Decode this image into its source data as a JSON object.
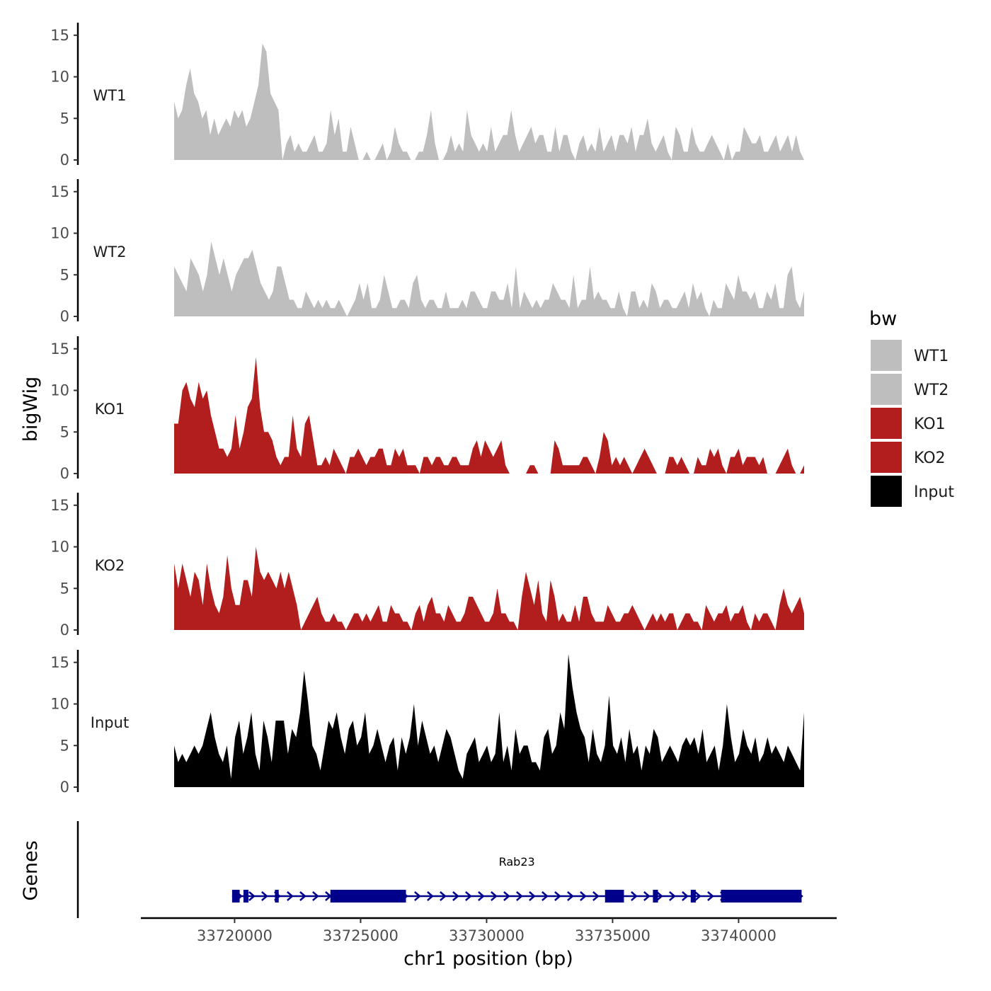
{
  "chart_data": {
    "type": "area",
    "ylabel": "bigWig",
    "xlabel": "chr1 position (bp)",
    "x_range": [
      33717600,
      33742600
    ],
    "y_range": [
      0,
      16
    ],
    "y_ticks": [
      0,
      5,
      10,
      15
    ],
    "x_ticks": [
      33720000,
      33725000,
      33730000,
      33735000,
      33740000
    ],
    "legend_title": "bw",
    "tracks": [
      {
        "name": "WT1",
        "color": "#bebebe",
        "values": [
          7,
          5,
          6,
          9,
          11,
          8,
          7,
          5,
          6,
          3,
          5,
          3,
          4,
          5,
          4,
          6,
          5,
          6,
          4,
          5,
          7,
          9,
          14,
          13,
          8,
          7,
          6,
          0,
          2,
          3,
          1,
          2,
          1,
          1,
          2,
          3,
          1,
          1,
          2,
          6,
          3,
          5,
          1,
          1,
          4,
          2,
          0,
          0,
          1,
          0,
          0,
          1,
          2,
          0,
          1,
          4,
          2,
          1,
          1,
          0,
          0,
          1,
          1,
          3,
          6,
          2,
          0,
          0,
          1,
          3,
          1,
          2,
          1,
          6,
          3,
          2,
          1,
          2,
          1,
          4,
          1,
          2,
          3,
          3,
          6,
          3,
          1,
          2,
          3,
          4,
          2,
          3,
          3,
          1,
          1,
          4,
          1,
          3,
          3,
          1,
          0,
          2,
          3,
          1,
          2,
          1,
          4,
          1,
          2,
          3,
          1,
          3,
          3,
          2,
          4,
          1,
          3,
          3,
          5,
          2,
          1,
          2,
          3,
          1,
          0,
          4,
          3,
          1,
          1,
          4,
          2,
          1,
          1,
          2,
          3,
          2,
          1,
          0,
          2,
          0,
          1,
          1,
          4,
          3,
          2,
          2,
          3,
          1,
          1,
          2,
          3,
          1,
          2,
          3,
          1,
          3,
          1,
          0
        ]
      },
      {
        "name": "WT2",
        "color": "#bebebe",
        "values": [
          6,
          5,
          4,
          3,
          7,
          6,
          5,
          3,
          5,
          9,
          7,
          5,
          7,
          5,
          3,
          5,
          6,
          7,
          7,
          8,
          6,
          4,
          3,
          2,
          3,
          6,
          6,
          4,
          2,
          2,
          1,
          1,
          3,
          2,
          1,
          2,
          1,
          2,
          1,
          1,
          2,
          1,
          0,
          1,
          2,
          4,
          2,
          4,
          1,
          1,
          2,
          5,
          3,
          1,
          1,
          2,
          2,
          1,
          4,
          5,
          2,
          1,
          2,
          2,
          1,
          1,
          3,
          1,
          1,
          1,
          2,
          1,
          3,
          3,
          2,
          1,
          1,
          3,
          3,
          2,
          2,
          4,
          1,
          6,
          1,
          3,
          2,
          1,
          2,
          1,
          2,
          2,
          4,
          3,
          2,
          2,
          1,
          5,
          1,
          2,
          2,
          6,
          2,
          3,
          2,
          2,
          1,
          1,
          3,
          1,
          0,
          3,
          3,
          1,
          2,
          1,
          4,
          3,
          1,
          2,
          2,
          1,
          1,
          2,
          3,
          1,
          4,
          2,
          3,
          1,
          0,
          2,
          1,
          1,
          4,
          3,
          2,
          5,
          3,
          3,
          2,
          3,
          1,
          1,
          3,
          2,
          4,
          1,
          1,
          5,
          6,
          2,
          1,
          3
        ]
      },
      {
        "name": "KO1",
        "color": "#b21e1e",
        "values": [
          6,
          6,
          10,
          11,
          9,
          8,
          11,
          9,
          10,
          7,
          5,
          3,
          3,
          2,
          3,
          7,
          3,
          5,
          8,
          9,
          14,
          8,
          5,
          5,
          4,
          2,
          1,
          2,
          2,
          7,
          3,
          2,
          6,
          7,
          4,
          1,
          1,
          2,
          1,
          3,
          2,
          1,
          0,
          2,
          2,
          3,
          2,
          1,
          2,
          2,
          3,
          3,
          1,
          1,
          3,
          2,
          3,
          1,
          1,
          1,
          0,
          2,
          2,
          1,
          2,
          2,
          1,
          1,
          2,
          2,
          1,
          1,
          1,
          3,
          4,
          2,
          4,
          3,
          2,
          3,
          4,
          1,
          0,
          0,
          0,
          0,
          0,
          1,
          1,
          0,
          0,
          0,
          0,
          4,
          3,
          1,
          1,
          1,
          1,
          1,
          2,
          2,
          1,
          0,
          2,
          5,
          4,
          1,
          2,
          1,
          2,
          1,
          0,
          1,
          2,
          3,
          2,
          1,
          0,
          0,
          0,
          2,
          2,
          1,
          2,
          1,
          0,
          0,
          2,
          1,
          1,
          3,
          2,
          3,
          1,
          0,
          2,
          2,
          3,
          1,
          2,
          2,
          2,
          1,
          2,
          0,
          0,
          0,
          1,
          2,
          3,
          1,
          0,
          0,
          1
        ]
      },
      {
        "name": "KO2",
        "color": "#b21e1e",
        "values": [
          8,
          5,
          8,
          6,
          4,
          7,
          6,
          3,
          8,
          5,
          3,
          2,
          4,
          9,
          5,
          3,
          3,
          6,
          6,
          4,
          10,
          7,
          6,
          7,
          6,
          5,
          7,
          5,
          7,
          5,
          3,
          0,
          1,
          2,
          3,
          4,
          2,
          1,
          1,
          2,
          1,
          1,
          0,
          1,
          2,
          2,
          1,
          2,
          1,
          2,
          3,
          1,
          1,
          3,
          2,
          2,
          1,
          1,
          0,
          2,
          3,
          1,
          3,
          4,
          2,
          2,
          1,
          3,
          2,
          1,
          1,
          2,
          4,
          4,
          3,
          2,
          1,
          1,
          2,
          5,
          2,
          2,
          1,
          1,
          0,
          4,
          7,
          5,
          3,
          6,
          2,
          1,
          6,
          4,
          1,
          2,
          1,
          1,
          3,
          1,
          4,
          4,
          2,
          1,
          1,
          1,
          3,
          2,
          1,
          1,
          2,
          2,
          3,
          2,
          1,
          0,
          1,
          2,
          1,
          2,
          1,
          2,
          2,
          0,
          1,
          2,
          2,
          1,
          1,
          0,
          3,
          2,
          1,
          2,
          2,
          3,
          1,
          2,
          2,
          3,
          1,
          0,
          2,
          1,
          2,
          2,
          1,
          0,
          3,
          5,
          3,
          2,
          3,
          4,
          2
        ]
      },
      {
        "name": "Input",
        "color": "#000000",
        "values": [
          5,
          3,
          4,
          3,
          4,
          5,
          4,
          5,
          7,
          9,
          6,
          4,
          3,
          5,
          1,
          6,
          8,
          4,
          6,
          9,
          4,
          2,
          8,
          6,
          3,
          8,
          8,
          8,
          4,
          7,
          6,
          9,
          14,
          10,
          5,
          4,
          2,
          5,
          8,
          7,
          9,
          6,
          4,
          7,
          8,
          5,
          6,
          9,
          4,
          5,
          7,
          5,
          3,
          5,
          6,
          2,
          6,
          4,
          6,
          10,
          5,
          8,
          6,
          4,
          5,
          3,
          5,
          7,
          6,
          4,
          2,
          1,
          4,
          5,
          6,
          3,
          4,
          5,
          3,
          4,
          9,
          3,
          5,
          2,
          7,
          4,
          5,
          5,
          3,
          3,
          2,
          6,
          7,
          4,
          5,
          9,
          7,
          16,
          12,
          9,
          7,
          6,
          3,
          7,
          4,
          3,
          5,
          11,
          5,
          4,
          6,
          3,
          7,
          4,
          5,
          2,
          5,
          4,
          7,
          6,
          3,
          4,
          5,
          4,
          3,
          5,
          6,
          5,
          6,
          4,
          7,
          3,
          4,
          5,
          2,
          5,
          10,
          6,
          3,
          4,
          7,
          5,
          4,
          6,
          3,
          4,
          6,
          4,
          5,
          4,
          3,
          5,
          4,
          3,
          2,
          9
        ]
      }
    ],
    "genes": [
      {
        "name": "Rab23",
        "strand": "+",
        "start": 33719900,
        "end": 33742500,
        "exons": [
          [
            33719900,
            33720200
          ],
          [
            33720350,
            33720550
          ],
          [
            33721600,
            33721750
          ],
          [
            33723800,
            33726800
          ],
          [
            33734700,
            33735450
          ],
          [
            33736600,
            33736800
          ],
          [
            33738100,
            33738300
          ],
          [
            33739300,
            33742500
          ]
        ]
      }
    ],
    "gene_track_label": "Genes"
  }
}
